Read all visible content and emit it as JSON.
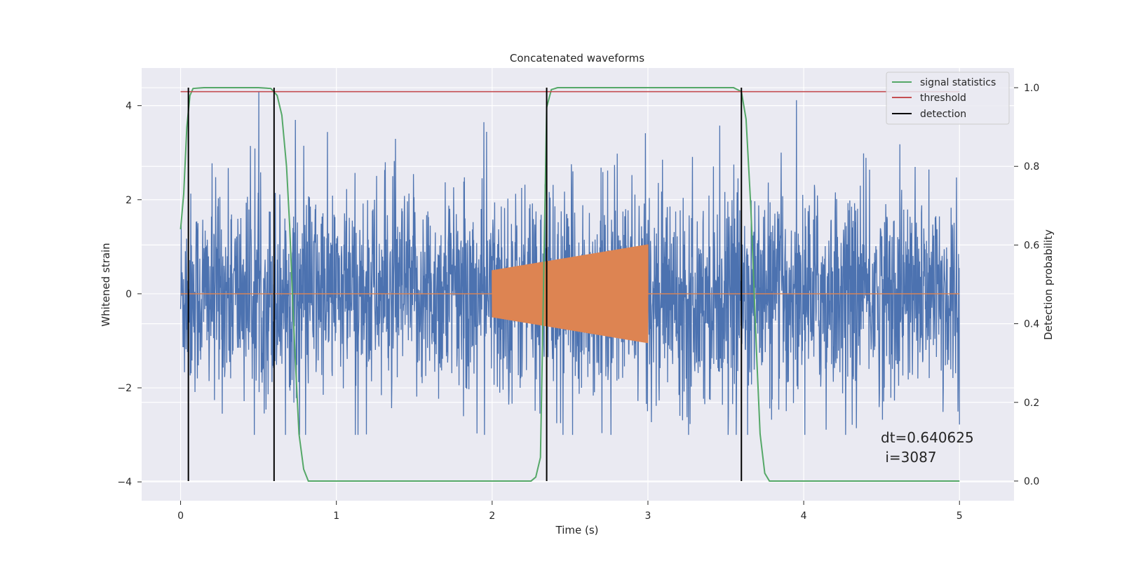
{
  "chart_data": {
    "type": "line",
    "title": "Concatenated waveforms",
    "xlabel": "Time (s)",
    "ylabel": "Whitened strain",
    "ylabel_right": "Detection probability",
    "xlim": [
      -0.25,
      5.35
    ],
    "ylim": [
      -4.4,
      4.8
    ],
    "ylim_right": [
      -0.05,
      1.05
    ],
    "x_ticks": [
      0,
      1,
      2,
      3,
      4,
      5
    ],
    "y_ticks": [
      -4,
      -2,
      0,
      2,
      4
    ],
    "y_ticks_right": [
      0.0,
      0.2,
      0.4,
      0.6,
      0.8,
      1.0
    ],
    "x_tick_labels": [
      "0",
      "1",
      "2",
      "3",
      "4",
      "5"
    ],
    "y_tick_labels": [
      "−4",
      "−2",
      "0",
      "2",
      "4"
    ],
    "y_tick_labels_right": [
      "0.0",
      "0.2",
      "0.4",
      "0.6",
      "0.8",
      "1.0"
    ],
    "grid": true,
    "legend_position": "top-right",
    "legend": [
      {
        "label": "signal statistics",
        "color": "#55a868"
      },
      {
        "label": "threshold",
        "color": "#c44e52"
      },
      {
        "label": "detection",
        "color": "#000000"
      }
    ],
    "noise_series": {
      "axis": "left",
      "color": "#4c72b0",
      "x_range": [
        0,
        5
      ],
      "approx_envelope": [
        -3.0,
        4.3
      ],
      "note_value": "dense whitened-noise strain"
    },
    "chirp_series": {
      "axis": "left",
      "color": "#dd8452",
      "x_range": [
        2.0,
        3.0
      ],
      "amplitude_start": 0.5,
      "amplitude_end": 1.05,
      "baseline": 0
    },
    "signal_statistics": {
      "axis": "right",
      "color": "#55a868",
      "points": [
        [
          0.0,
          0.64
        ],
        [
          0.02,
          0.73
        ],
        [
          0.04,
          0.9
        ],
        [
          0.06,
          0.98
        ],
        [
          0.08,
          0.998
        ],
        [
          0.15,
          1.0
        ],
        [
          0.5,
          1.0
        ],
        [
          0.58,
          0.998
        ],
        [
          0.62,
          0.98
        ],
        [
          0.65,
          0.93
        ],
        [
          0.68,
          0.8
        ],
        [
          0.7,
          0.65
        ],
        [
          0.72,
          0.45
        ],
        [
          0.74,
          0.28
        ],
        [
          0.76,
          0.12
        ],
        [
          0.79,
          0.03
        ],
        [
          0.82,
          0.0
        ],
        [
          2.25,
          0.0
        ],
        [
          2.28,
          0.01
        ],
        [
          2.31,
          0.06
        ],
        [
          2.33,
          0.5
        ],
        [
          2.35,
          0.95
        ],
        [
          2.38,
          0.995
        ],
        [
          2.42,
          1.0
        ],
        [
          3.55,
          1.0
        ],
        [
          3.6,
          0.99
        ],
        [
          3.63,
          0.92
        ],
        [
          3.66,
          0.7
        ],
        [
          3.68,
          0.5
        ],
        [
          3.7,
          0.3
        ],
        [
          3.72,
          0.12
        ],
        [
          3.75,
          0.02
        ],
        [
          3.78,
          0.0
        ],
        [
          5.0,
          0.0
        ]
      ]
    },
    "threshold": {
      "axis": "right",
      "value": 0.99,
      "x_range": [
        0,
        5
      ],
      "color": "#c44e52"
    },
    "detections": {
      "axis": "right",
      "x": [
        0.05,
        0.6,
        2.35,
        3.6
      ],
      "y_range": [
        0,
        1
      ],
      "color": "#000000"
    },
    "annotation": {
      "line1": "dt=0.640625",
      "line2": " i=3087",
      "x": 4.5,
      "y": -3.0
    }
  }
}
